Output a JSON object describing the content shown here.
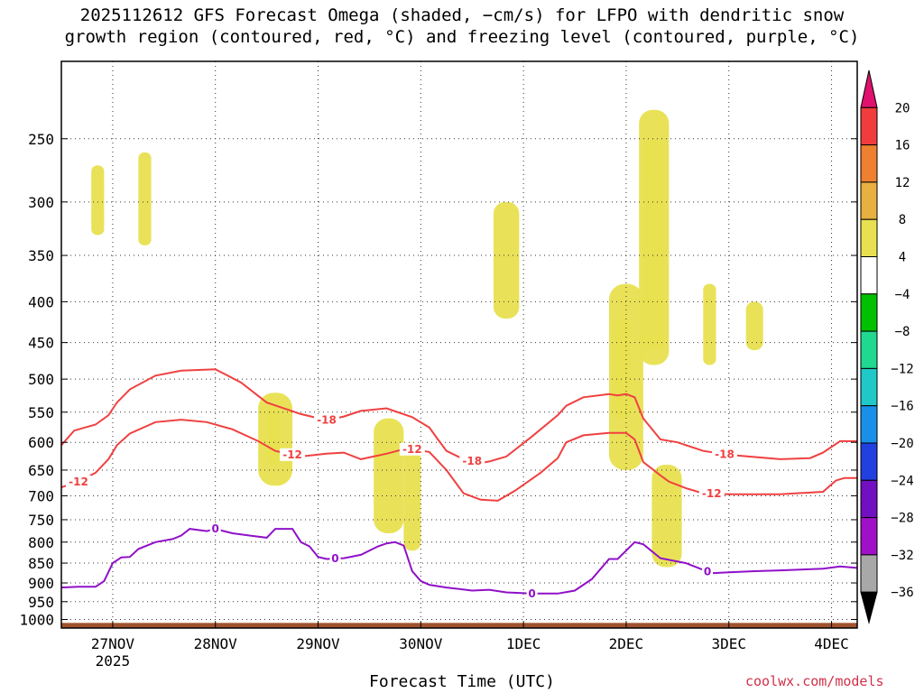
{
  "title_line1": "2025112612 GFS Forecast Omega (shaded, −cm/s) for LFPO with dendritic snow",
  "title_line2": "growth region (contoured, red, °C) and freezing level (contoured, purple, °C)",
  "x_axis_label": "Forecast Time (UTC)",
  "credit": "coolwx.com/models",
  "chart_data": {
    "type": "heatmap",
    "title": "2025112612 GFS Forecast Omega (shaded, −cm/s) for LFPO with dendritic snow growth region (contoured, red, °C) and freezing level (contoured, purple, °C)",
    "xlabel": "Forecast Time (UTC)",
    "ylabel": "Pressure (hPa)",
    "x_unit": "hours since 2025-11-26 12 UTC",
    "xlim": [
      0,
      186
    ],
    "ylim": [
      1025,
      200
    ],
    "y_scale": "log-pressure",
    "x_ticks": [
      {
        "hour": 12,
        "label": "27NOV",
        "sublabel": "2025"
      },
      {
        "hour": 36,
        "label": "28NOV",
        "sublabel": ""
      },
      {
        "hour": 60,
        "label": "29NOV",
        "sublabel": ""
      },
      {
        "hour": 84,
        "label": "30NOV",
        "sublabel": ""
      },
      {
        "hour": 108,
        "label": "1DEC",
        "sublabel": ""
      },
      {
        "hour": 132,
        "label": "2DEC",
        "sublabel": ""
      },
      {
        "hour": 156,
        "label": "3DEC",
        "sublabel": ""
      },
      {
        "hour": 180,
        "label": "4DEC",
        "sublabel": ""
      }
    ],
    "y_ticks": [
      250,
      300,
      350,
      400,
      450,
      500,
      550,
      600,
      650,
      700,
      750,
      800,
      850,
      900,
      950,
      1000
    ],
    "colorbar": {
      "levels": [
        "20",
        "16",
        "12",
        "8",
        "4",
        "−4",
        "−8",
        "−12",
        "−16",
        "−20",
        "−24",
        "−28",
        "−32",
        "−36"
      ],
      "colors": [
        "#e0126e",
        "#f03c3c",
        "#ee8030",
        "#e8b040",
        "#e8e050",
        "#ffffff",
        "#00c000",
        "#20d890",
        "#20c8c8",
        "#1890e8",
        "#2040e0",
        "#7010c0",
        "#a010c8",
        "#a8a8a8",
        "#000000"
      ]
    },
    "series": [
      {
        "name": "dendritic -18C",
        "color": "#f04040",
        "label": "-18",
        "label_hours": [
          62,
          96,
          155
        ],
        "x": [
          0,
          3,
          8,
          11,
          13,
          16,
          22,
          28,
          36,
          42,
          48,
          56,
          62,
          66,
          70,
          76,
          82,
          86,
          88,
          90,
          94,
          98,
          100,
          104,
          110,
          116,
          118,
          122,
          128,
          130,
          132,
          134,
          136,
          140,
          144,
          150,
          156,
          168,
          175,
          178,
          182,
          186
        ],
        "y": [
          605,
          580,
          570,
          555,
          535,
          515,
          495,
          488,
          486,
          505,
          535,
          553,
          563,
          557,
          548,
          544,
          558,
          575,
          595,
          615,
          630,
          637,
          634,
          625,
          590,
          555,
          540,
          527,
          522,
          524,
          522,
          527,
          560,
          595,
          600,
          615,
          622,
          630,
          628,
          618,
          598,
          598
        ]
      },
      {
        "name": "dendritic -12C",
        "color": "#f04040",
        "label": "-12",
        "label_hours": [
          4,
          54,
          82,
          152
        ],
        "x": [
          0,
          4,
          8,
          11,
          13,
          16,
          22,
          28,
          34,
          40,
          46,
          50,
          56,
          62,
          66,
          70,
          76,
          80,
          82,
          86,
          90,
          94,
          98,
          102,
          106,
          112,
          116,
          118,
          122,
          128,
          132,
          134,
          136,
          140,
          142,
          146,
          150,
          156,
          168,
          178,
          181,
          183,
          186
        ],
        "y": [
          683,
          672,
          655,
          630,
          605,
          585,
          566,
          562,
          566,
          578,
          598,
          615,
          625,
          620,
          618,
          630,
          620,
          612,
          612,
          617,
          650,
          695,
          708,
          710,
          690,
          655,
          628,
          600,
          588,
          584,
          584,
          595,
          635,
          660,
          672,
          685,
          695,
          697,
          697,
          692,
          670,
          665,
          665
        ]
      },
      {
        "name": "freezing level 0C",
        "color": "#9010c8",
        "label": "0",
        "label_hours": [
          36,
          64,
          110,
          151
        ],
        "x": [
          0,
          4,
          8,
          10,
          12,
          14,
          16,
          18,
          22,
          26,
          28,
          30,
          34,
          36,
          38,
          40,
          44,
          48,
          50,
          54,
          56,
          58,
          60,
          62,
          66,
          70,
          74,
          76,
          78,
          80,
          82,
          84,
          86,
          90,
          96,
          100,
          104,
          110,
          116,
          120,
          124,
          128,
          130,
          134,
          136,
          140,
          146,
          152,
          156,
          162,
          168,
          178,
          182,
          186
        ],
        "y": [
          912,
          910,
          910,
          895,
          850,
          836,
          835,
          816,
          800,
          793,
          785,
          770,
          775,
          770,
          775,
          780,
          785,
          790,
          770,
          770,
          800,
          810,
          835,
          840,
          838,
          830,
          810,
          803,
          800,
          808,
          870,
          895,
          905,
          912,
          920,
          918,
          925,
          928,
          928,
          920,
          890,
          840,
          840,
          800,
          805,
          838,
          850,
          875,
          873,
          870,
          868,
          864,
          858,
          862
        ]
      }
    ],
    "shaded_regions": [
      {
        "level": "4",
        "hours": [
          5,
          14
        ],
        "hpa": [
          200,
          470
        ]
      },
      {
        "level": "4",
        "hours": [
          14,
          22
        ],
        "hpa": [
          200,
          340
        ]
      },
      {
        "level": "4",
        "hours": [
          22,
          30
        ],
        "hpa": [
          200,
          400
        ]
      },
      {
        "level": "8",
        "hours": [
          7,
          10
        ],
        "hpa": [
          270,
          330
        ]
      },
      {
        "level": "8",
        "hours": [
          18,
          21
        ],
        "hpa": [
          260,
          340
        ]
      },
      {
        "level": "4",
        "hours": [
          42,
          47
        ],
        "hpa": [
          380,
          570
        ]
      },
      {
        "level": "4",
        "hours": [
          62,
          66
        ],
        "hpa": [
          300,
          570
        ]
      },
      {
        "level": "4",
        "hours": [
          70,
          80
        ],
        "hpa": [
          420,
          570
        ]
      },
      {
        "level": "4",
        "hours": [
          96,
          110
        ],
        "hpa": [
          240,
          560
        ]
      },
      {
        "level": "8",
        "hours": [
          101,
          107
        ],
        "hpa": [
          300,
          420
        ]
      },
      {
        "level": "4",
        "hours": [
          138,
          146
        ],
        "hpa": [
          200,
          270
        ]
      },
      {
        "level": "4",
        "hours": [
          155,
          168
        ],
        "hpa": [
          360,
          470
        ]
      },
      {
        "level": "8",
        "hours": [
          160,
          164
        ],
        "hpa": [
          400,
          460
        ]
      },
      {
        "level": "-4",
        "hours": [
          46,
          54
        ],
        "hpa": [
          520,
          680
        ]
      },
      {
        "level": "-4",
        "hours": [
          73,
          80
        ],
        "hpa": [
          560,
          780
        ]
      },
      {
        "level": "-4",
        "hours": [
          80,
          84
        ],
        "hpa": [
          600,
          820
        ]
      },
      {
        "level": "-8",
        "hours": [
          48,
          51
        ],
        "hpa": [
          540,
          640
        ]
      },
      {
        "level": "-4",
        "hours": [
          128,
          136
        ],
        "hpa": [
          380,
          650
        ]
      },
      {
        "level": "-8",
        "hours": [
          129,
          133
        ],
        "hpa": [
          420,
          560
        ]
      },
      {
        "level": "-12",
        "hours": [
          130,
          132
        ],
        "hpa": [
          450,
          520
        ]
      },
      {
        "level": "-4",
        "hours": [
          135,
          142
        ],
        "hpa": [
          230,
          480
        ]
      },
      {
        "level": "-8",
        "hours": [
          136,
          141
        ],
        "hpa": [
          250,
          460
        ]
      },
      {
        "level": "-12",
        "hours": [
          137,
          139
        ],
        "hpa": [
          280,
          420
        ]
      },
      {
        "level": "-4",
        "hours": [
          138,
          145
        ],
        "hpa": [
          640,
          860
        ]
      },
      {
        "level": "-4",
        "hours": [
          150,
          153
        ],
        "hpa": [
          380,
          480
        ]
      }
    ],
    "surface_band_hpa": [
      1010,
      1025
    ]
  }
}
